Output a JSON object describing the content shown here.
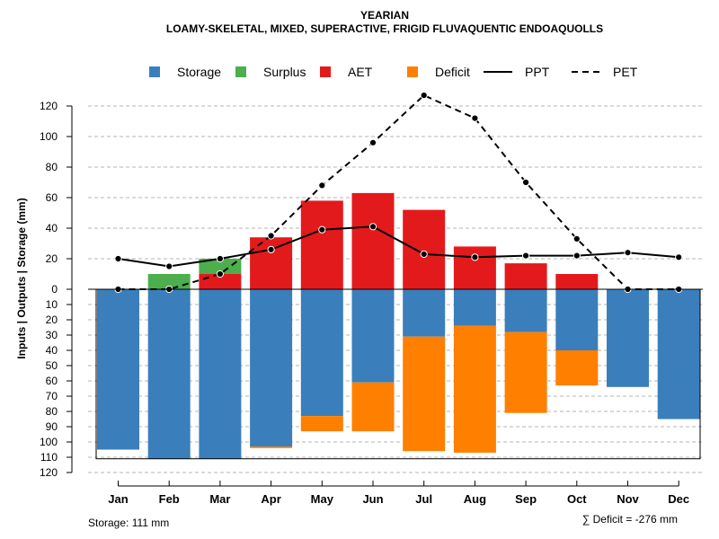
{
  "chart_data": {
    "type": "bar",
    "title": "YEARIAN",
    "subtitle": "LOAMY-SKELETAL, MIXED, SUPERACTIVE, FRIGID FLUVAQUENTIC ENDOAQUOLLS",
    "ylabel": "Inputs | Outputs | Storage    (mm)",
    "xlabel": "",
    "categories": [
      "Jan",
      "Feb",
      "Mar",
      "Apr",
      "May",
      "Jun",
      "Jul",
      "Aug",
      "Sep",
      "Oct",
      "Nov",
      "Dec"
    ],
    "ylim_top": [
      0,
      130
    ],
    "ylim_bottom": [
      0,
      120
    ],
    "yticks_top": [
      0,
      20,
      40,
      60,
      80,
      100,
      120
    ],
    "yticks_bottom": [
      10,
      20,
      30,
      40,
      50,
      60,
      70,
      80,
      90,
      100,
      110,
      120
    ],
    "legend": [
      {
        "label": "Storage",
        "kind": "box",
        "color": "#3a7fbc"
      },
      {
        "label": "Surplus",
        "kind": "box",
        "color": "#4cae4c"
      },
      {
        "label": "AET",
        "kind": "box",
        "color": "#e31a1c"
      },
      {
        "label": "Deficit",
        "kind": "box",
        "color": "#ff7f00"
      },
      {
        "label": "PPT",
        "kind": "solid",
        "color": "#000000"
      },
      {
        "label": "PET",
        "kind": "dashed",
        "color": "#000000"
      }
    ],
    "series": [
      {
        "name": "AET",
        "color": "#e31a1c",
        "values": [
          0,
          0,
          10,
          34,
          58,
          63,
          52,
          28,
          17,
          10,
          0,
          0
        ]
      },
      {
        "name": "Surplus",
        "color": "#4cae4c",
        "values": [
          0,
          10,
          10,
          0,
          0,
          0,
          0,
          0,
          0,
          0,
          0,
          0
        ]
      },
      {
        "name": "Storage",
        "color": "#3a7fbc",
        "values": [
          105,
          111,
          111,
          103,
          83,
          61,
          31,
          24,
          28,
          40,
          64,
          85
        ]
      },
      {
        "name": "Deficit",
        "color": "#ff7f00",
        "values": [
          0,
          0,
          0,
          1,
          10,
          32,
          75,
          83,
          53,
          23,
          0,
          0
        ]
      },
      {
        "name": "PPT",
        "color": "#000000",
        "values": [
          20,
          15,
          20,
          26,
          39,
          41,
          23,
          21,
          22,
          22,
          24,
          21
        ]
      },
      {
        "name": "PET",
        "color": "#000000",
        "values": [
          0,
          0,
          10,
          35,
          68,
          96,
          127,
          112,
          70,
          33,
          0,
          0
        ]
      }
    ],
    "storage_capacity": 111,
    "footer_left": "Storage: 111 mm",
    "footer_right": "∑ Deficit = -276 mm",
    "grid": true
  }
}
